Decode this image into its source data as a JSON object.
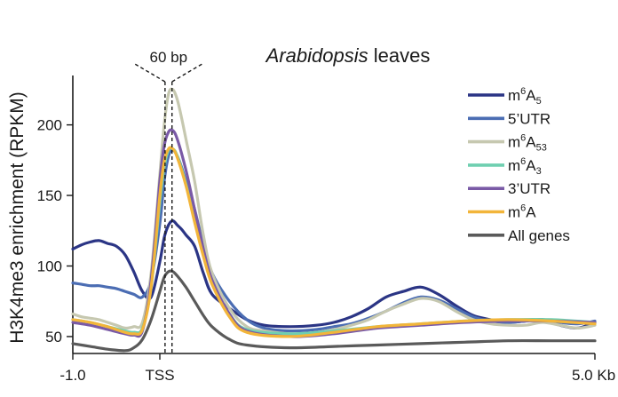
{
  "chart_data": {
    "type": "line",
    "title_italic": "Arabidopsis",
    "title_rest": " leaves",
    "ylabel": "H3K4me3 enrichment (RPKM)",
    "xlabel": "",
    "xlim": [
      -1.0,
      5.0
    ],
    "ylim": [
      38,
      235
    ],
    "x_ticks": [
      {
        "value": -1.0,
        "label": "-1.0"
      },
      {
        "value": 0.0,
        "label": "TSS"
      },
      {
        "value": 5.0,
        "label": "5.0 Kb"
      }
    ],
    "y_ticks": [
      50,
      100,
      150,
      200
    ],
    "grid": false,
    "legend_placement": "top-right",
    "annotation": {
      "label": "60 bp",
      "x_left": 0.06,
      "x_right": 0.14
    },
    "series": [
      {
        "name": "m6A5",
        "base": "m",
        "sup": "6",
        "mid": "A",
        "sub": "5",
        "color": "#2b3585",
        "x": [
          -1.0,
          -0.9,
          -0.8,
          -0.7,
          -0.6,
          -0.5,
          -0.4,
          -0.3,
          -0.2,
          -0.1,
          0.0,
          0.05,
          0.1,
          0.15,
          0.2,
          0.25,
          0.3,
          0.4,
          0.5,
          0.6,
          0.8,
          1.0,
          1.2,
          1.5,
          1.8,
          2.0,
          2.2,
          2.4,
          2.6,
          2.8,
          3.0,
          3.2,
          3.4,
          3.6,
          3.8,
          4.0,
          4.2,
          4.4,
          4.6,
          4.8,
          5.0
        ],
        "y": [
          112,
          115,
          117,
          118,
          116,
          114,
          108,
          96,
          82,
          78,
          103,
          120,
          129,
          132,
          129,
          126,
          122,
          114,
          95,
          80,
          70,
          62,
          58,
          57,
          58,
          60,
          64,
          70,
          78,
          82,
          85,
          80,
          72,
          65,
          62,
          60,
          61,
          62,
          58,
          56,
          60
        ]
      },
      {
        "name": "5'UTR",
        "text": "5’UTR",
        "color": "#4b6db3",
        "x": [
          -1.0,
          -0.9,
          -0.8,
          -0.7,
          -0.6,
          -0.5,
          -0.4,
          -0.3,
          -0.2,
          -0.1,
          0.0,
          0.05,
          0.1,
          0.15,
          0.2,
          0.25,
          0.3,
          0.4,
          0.5,
          0.6,
          0.8,
          1.0,
          1.2,
          1.5,
          1.8,
          2.0,
          2.2,
          2.4,
          2.6,
          2.8,
          3.0,
          3.2,
          3.4,
          3.6,
          3.8,
          4.0,
          4.2,
          4.4,
          4.6,
          4.8,
          5.0
        ],
        "y": [
          88,
          87,
          86,
          86,
          85,
          84,
          82,
          80,
          78,
          90,
          130,
          160,
          178,
          182,
          178,
          170,
          160,
          140,
          115,
          95,
          75,
          62,
          56,
          54,
          55,
          57,
          59,
          63,
          68,
          74,
          78,
          76,
          70,
          64,
          61,
          60,
          61,
          62,
          60,
          59,
          61
        ]
      },
      {
        "name": "m6A53",
        "base": "m",
        "sup": "6",
        "mid": "A",
        "sub": "53",
        "color": "#c6c8b0",
        "x": [
          -1.0,
          -0.9,
          -0.8,
          -0.7,
          -0.6,
          -0.5,
          -0.4,
          -0.3,
          -0.2,
          -0.1,
          0.0,
          0.05,
          0.1,
          0.15,
          0.2,
          0.25,
          0.3,
          0.4,
          0.5,
          0.6,
          0.8,
          1.0,
          1.2,
          1.5,
          1.8,
          2.0,
          2.2,
          2.4,
          2.6,
          2.8,
          3.0,
          3.2,
          3.4,
          3.6,
          3.8,
          4.0,
          4.2,
          4.4,
          4.6,
          4.8,
          5.0
        ],
        "y": [
          66,
          64,
          63,
          62,
          60,
          58,
          56,
          57,
          60,
          95,
          165,
          200,
          222,
          225,
          218,
          205,
          190,
          160,
          122,
          95,
          70,
          57,
          54,
          52,
          53,
          55,
          58,
          62,
          68,
          73,
          77,
          75,
          68,
          62,
          59,
          58,
          58,
          60,
          58,
          56,
          58
        ]
      },
      {
        "name": "m6A3",
        "base": "m",
        "sup": "6",
        "mid": "A",
        "sub": "3",
        "color": "#6fcfb0",
        "x": [
          -1.0,
          -0.8,
          -0.6,
          -0.4,
          -0.3,
          -0.2,
          -0.1,
          0.0,
          0.05,
          0.1,
          0.15,
          0.2,
          0.3,
          0.4,
          0.5,
          0.6,
          0.8,
          1.0,
          1.5,
          2.0,
          2.5,
          3.0,
          3.5,
          4.0,
          4.5,
          5.0
        ],
        "y": [
          62,
          60,
          57,
          54,
          53,
          56,
          85,
          145,
          170,
          182,
          183,
          178,
          158,
          132,
          108,
          88,
          66,
          55,
          52,
          54,
          57,
          59,
          61,
          62,
          62,
          60
        ]
      },
      {
        "name": "3'UTR",
        "text": "3’UTR",
        "color": "#7a5aa6",
        "x": [
          -1.0,
          -0.8,
          -0.6,
          -0.4,
          -0.3,
          -0.2,
          -0.1,
          0.0,
          0.05,
          0.1,
          0.15,
          0.2,
          0.3,
          0.4,
          0.5,
          0.6,
          0.8,
          1.0,
          1.5,
          2.0,
          2.5,
          3.0,
          3.5,
          4.0,
          4.5,
          5.0
        ],
        "y": [
          60,
          58,
          55,
          52,
          51,
          54,
          90,
          160,
          185,
          195,
          196,
          190,
          168,
          140,
          112,
          90,
          66,
          54,
          50,
          52,
          56,
          58,
          60,
          61,
          61,
          60
        ]
      },
      {
        "name": "m6A",
        "base": "m",
        "sup": "6",
        "mid": "A",
        "sub": "",
        "color": "#f2b53a",
        "x": [
          -1.0,
          -0.8,
          -0.6,
          -0.4,
          -0.3,
          -0.2,
          -0.1,
          0.0,
          0.05,
          0.1,
          0.15,
          0.2,
          0.3,
          0.4,
          0.5,
          0.6,
          0.8,
          1.0,
          1.5,
          2.0,
          2.5,
          3.0,
          3.5,
          4.0,
          4.5,
          5.0
        ],
        "y": [
          62,
          60,
          57,
          53,
          52,
          55,
          85,
          150,
          174,
          183,
          183,
          177,
          157,
          131,
          107,
          87,
          64,
          53,
          50,
          53,
          57,
          59,
          61,
          62,
          61,
          59
        ]
      },
      {
        "name": "All genes",
        "text": "All genes",
        "color": "#5a5a5a",
        "x": [
          -1.0,
          -0.8,
          -0.6,
          -0.4,
          -0.3,
          -0.2,
          -0.1,
          0.0,
          0.05,
          0.1,
          0.15,
          0.2,
          0.3,
          0.4,
          0.5,
          0.6,
          0.8,
          1.0,
          1.5,
          2.0,
          2.5,
          3.0,
          3.5,
          4.0,
          4.5,
          5.0
        ],
        "y": [
          45,
          43,
          41,
          40,
          42,
          48,
          62,
          82,
          92,
          96,
          96,
          93,
          85,
          75,
          65,
          57,
          48,
          44,
          42,
          43,
          44,
          45,
          46,
          47,
          47,
          47
        ]
      }
    ]
  }
}
